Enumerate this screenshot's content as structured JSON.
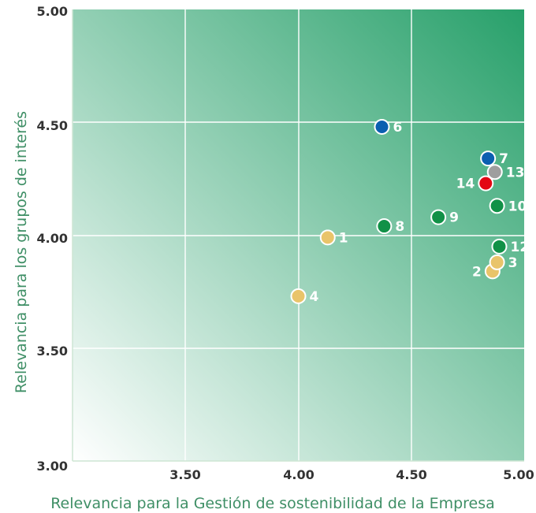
{
  "chart_data": {
    "type": "scatter",
    "title": "",
    "xlabel": "Relevancia para la Gestión de sostenibilidad de la Empresa",
    "ylabel": "Relevancia para los grupos de interés",
    "xlim": [
      3.0,
      5.0
    ],
    "ylim": [
      3.0,
      5.0
    ],
    "grid": true,
    "x_tick_labels": [
      "3.50",
      "4.00",
      "4.50",
      "5.00"
    ],
    "y_tick_labels": [
      "3.00",
      "3.50",
      "4.00",
      "4.50",
      "5.00"
    ],
    "background": {
      "from": "#ffffff",
      "to": "#27a06a"
    },
    "points": [
      {
        "label": "1",
        "x": 4.13,
        "y": 3.99,
        "color": "#e9c46a",
        "label_side": "right"
      },
      {
        "label": "2",
        "x": 4.86,
        "y": 3.84,
        "color": "#e9c46a",
        "label_side": "left"
      },
      {
        "label": "3",
        "x": 4.88,
        "y": 3.88,
        "color": "#e9c46a",
        "label_side": "right"
      },
      {
        "label": "4",
        "x": 4.0,
        "y": 3.73,
        "color": "#e9c46a",
        "label_side": "right"
      },
      {
        "label": "6",
        "x": 4.37,
        "y": 4.48,
        "color": "#0b5fb0",
        "label_side": "right"
      },
      {
        "label": "7",
        "x": 4.84,
        "y": 4.34,
        "color": "#0b5fb0",
        "label_side": "right"
      },
      {
        "label": "8",
        "x": 4.38,
        "y": 4.04,
        "color": "#119147",
        "label_side": "right"
      },
      {
        "label": "9",
        "x": 4.62,
        "y": 4.08,
        "color": "#119147",
        "label_side": "right"
      },
      {
        "label": "10",
        "x": 4.88,
        "y": 4.13,
        "color": "#119147",
        "label_side": "right"
      },
      {
        "label": "12",
        "x": 4.89,
        "y": 3.95,
        "color": "#119147",
        "label_side": "right"
      },
      {
        "label": "13",
        "x": 4.87,
        "y": 4.28,
        "color": "#9e9e9e",
        "label_side": "right"
      },
      {
        "label": "14",
        "x": 4.83,
        "y": 4.23,
        "color": "#e30613",
        "label_side": "left"
      }
    ]
  }
}
